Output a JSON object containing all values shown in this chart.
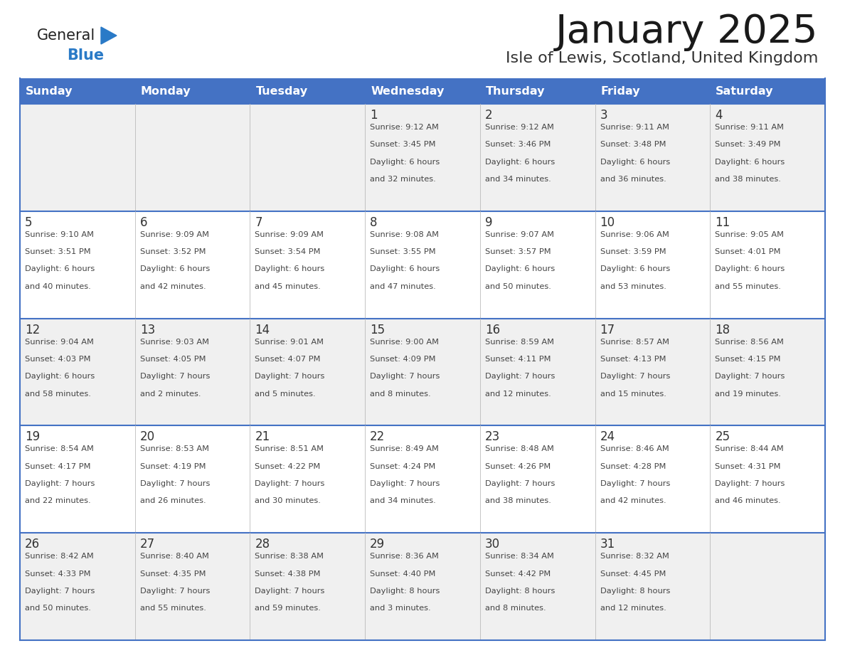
{
  "title": "January 2025",
  "subtitle": "Isle of Lewis, Scotland, United Kingdom",
  "header_bg": "#4472C4",
  "header_text_color": "#FFFFFF",
  "day_headers": [
    "Sunday",
    "Monday",
    "Tuesday",
    "Wednesday",
    "Thursday",
    "Friday",
    "Saturday"
  ],
  "row_bg_odd": "#F0F0F0",
  "row_bg_even": "#FFFFFF",
  "cell_border_color": "#4472C4",
  "day_num_color": "#333333",
  "cell_text_color": "#444444",
  "logo_general_color": "#222222",
  "logo_blue_color": "#2A7AC7",
  "weeks": [
    {
      "days": [
        {
          "day": null,
          "sunrise": null,
          "sunset": null,
          "daylight": null
        },
        {
          "day": null,
          "sunrise": null,
          "sunset": null,
          "daylight": null
        },
        {
          "day": null,
          "sunrise": null,
          "sunset": null,
          "daylight": null
        },
        {
          "day": "1",
          "sunrise": "9:12 AM",
          "sunset": "3:45 PM",
          "daylight": "6 hours\nand 32 minutes."
        },
        {
          "day": "2",
          "sunrise": "9:12 AM",
          "sunset": "3:46 PM",
          "daylight": "6 hours\nand 34 minutes."
        },
        {
          "day": "3",
          "sunrise": "9:11 AM",
          "sunset": "3:48 PM",
          "daylight": "6 hours\nand 36 minutes."
        },
        {
          "day": "4",
          "sunrise": "9:11 AM",
          "sunset": "3:49 PM",
          "daylight": "6 hours\nand 38 minutes."
        }
      ]
    },
    {
      "days": [
        {
          "day": "5",
          "sunrise": "9:10 AM",
          "sunset": "3:51 PM",
          "daylight": "6 hours\nand 40 minutes."
        },
        {
          "day": "6",
          "sunrise": "9:09 AM",
          "sunset": "3:52 PM",
          "daylight": "6 hours\nand 42 minutes."
        },
        {
          "day": "7",
          "sunrise": "9:09 AM",
          "sunset": "3:54 PM",
          "daylight": "6 hours\nand 45 minutes."
        },
        {
          "day": "8",
          "sunrise": "9:08 AM",
          "sunset": "3:55 PM",
          "daylight": "6 hours\nand 47 minutes."
        },
        {
          "day": "9",
          "sunrise": "9:07 AM",
          "sunset": "3:57 PM",
          "daylight": "6 hours\nand 50 minutes."
        },
        {
          "day": "10",
          "sunrise": "9:06 AM",
          "sunset": "3:59 PM",
          "daylight": "6 hours\nand 53 minutes."
        },
        {
          "day": "11",
          "sunrise": "9:05 AM",
          "sunset": "4:01 PM",
          "daylight": "6 hours\nand 55 minutes."
        }
      ]
    },
    {
      "days": [
        {
          "day": "12",
          "sunrise": "9:04 AM",
          "sunset": "4:03 PM",
          "daylight": "6 hours\nand 58 minutes."
        },
        {
          "day": "13",
          "sunrise": "9:03 AM",
          "sunset": "4:05 PM",
          "daylight": "7 hours\nand 2 minutes."
        },
        {
          "day": "14",
          "sunrise": "9:01 AM",
          "sunset": "4:07 PM",
          "daylight": "7 hours\nand 5 minutes."
        },
        {
          "day": "15",
          "sunrise": "9:00 AM",
          "sunset": "4:09 PM",
          "daylight": "7 hours\nand 8 minutes."
        },
        {
          "day": "16",
          "sunrise": "8:59 AM",
          "sunset": "4:11 PM",
          "daylight": "7 hours\nand 12 minutes."
        },
        {
          "day": "17",
          "sunrise": "8:57 AM",
          "sunset": "4:13 PM",
          "daylight": "7 hours\nand 15 minutes."
        },
        {
          "day": "18",
          "sunrise": "8:56 AM",
          "sunset": "4:15 PM",
          "daylight": "7 hours\nand 19 minutes."
        }
      ]
    },
    {
      "days": [
        {
          "day": "19",
          "sunrise": "8:54 AM",
          "sunset": "4:17 PM",
          "daylight": "7 hours\nand 22 minutes."
        },
        {
          "day": "20",
          "sunrise": "8:53 AM",
          "sunset": "4:19 PM",
          "daylight": "7 hours\nand 26 minutes."
        },
        {
          "day": "21",
          "sunrise": "8:51 AM",
          "sunset": "4:22 PM",
          "daylight": "7 hours\nand 30 minutes."
        },
        {
          "day": "22",
          "sunrise": "8:49 AM",
          "sunset": "4:24 PM",
          "daylight": "7 hours\nand 34 minutes."
        },
        {
          "day": "23",
          "sunrise": "8:48 AM",
          "sunset": "4:26 PM",
          "daylight": "7 hours\nand 38 minutes."
        },
        {
          "day": "24",
          "sunrise": "8:46 AM",
          "sunset": "4:28 PM",
          "daylight": "7 hours\nand 42 minutes."
        },
        {
          "day": "25",
          "sunrise": "8:44 AM",
          "sunset": "4:31 PM",
          "daylight": "7 hours\nand 46 minutes."
        }
      ]
    },
    {
      "days": [
        {
          "day": "26",
          "sunrise": "8:42 AM",
          "sunset": "4:33 PM",
          "daylight": "7 hours\nand 50 minutes."
        },
        {
          "day": "27",
          "sunrise": "8:40 AM",
          "sunset": "4:35 PM",
          "daylight": "7 hours\nand 55 minutes."
        },
        {
          "day": "28",
          "sunrise": "8:38 AM",
          "sunset": "4:38 PM",
          "daylight": "7 hours\nand 59 minutes."
        },
        {
          "day": "29",
          "sunrise": "8:36 AM",
          "sunset": "4:40 PM",
          "daylight": "8 hours\nand 3 minutes."
        },
        {
          "day": "30",
          "sunrise": "8:34 AM",
          "sunset": "4:42 PM",
          "daylight": "8 hours\nand 8 minutes."
        },
        {
          "day": "31",
          "sunrise": "8:32 AM",
          "sunset": "4:45 PM",
          "daylight": "8 hours\nand 12 minutes."
        },
        {
          "day": null,
          "sunrise": null,
          "sunset": null,
          "daylight": null
        }
      ]
    }
  ]
}
